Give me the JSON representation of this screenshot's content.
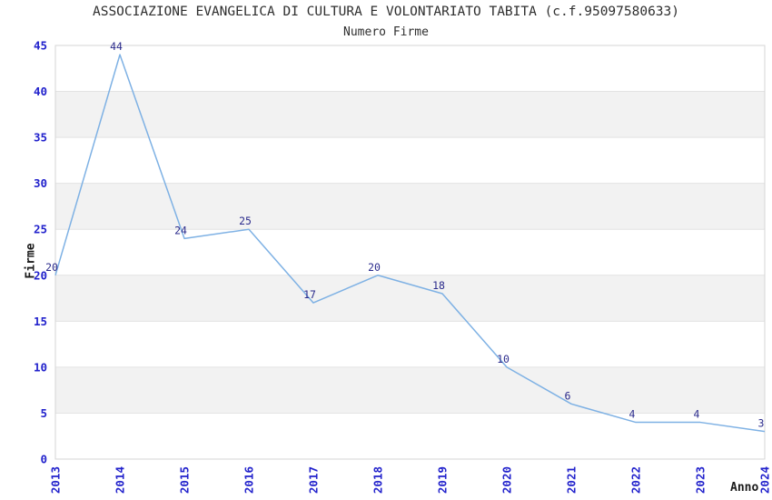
{
  "chart_data": {
    "type": "line",
    "title": "ASSOCIAZIONE EVANGELICA DI CULTURA E VOLONTARIATO TABITA (c.f.95097580633)",
    "subtitle": "Numero Firme",
    "xlabel": "Anno",
    "ylabel": "Firme",
    "categories": [
      "2013",
      "2014",
      "2015",
      "2016",
      "2017",
      "2018",
      "2019",
      "2020",
      "2021",
      "2022",
      "2023",
      "2024"
    ],
    "values": [
      20,
      44,
      24,
      25,
      17,
      20,
      18,
      10,
      6,
      4,
      4,
      3
    ],
    "ylim": [
      0,
      45
    ],
    "ytick_step": 5,
    "grid": "alternating-horizontal-bands",
    "legend": "none",
    "data_labels_shown": true,
    "colors": {
      "line": "#7EB1E4",
      "tick_label": "#2222CC",
      "data_label": "#2B2B8C",
      "band": "#F2F2F2",
      "gridline": "#E3E3E3",
      "frame": "#D6D6D6",
      "title_text": "#2E2E2E",
      "axis_label_text": "#1A1A1A",
      "background": "#FFFFFF"
    }
  }
}
